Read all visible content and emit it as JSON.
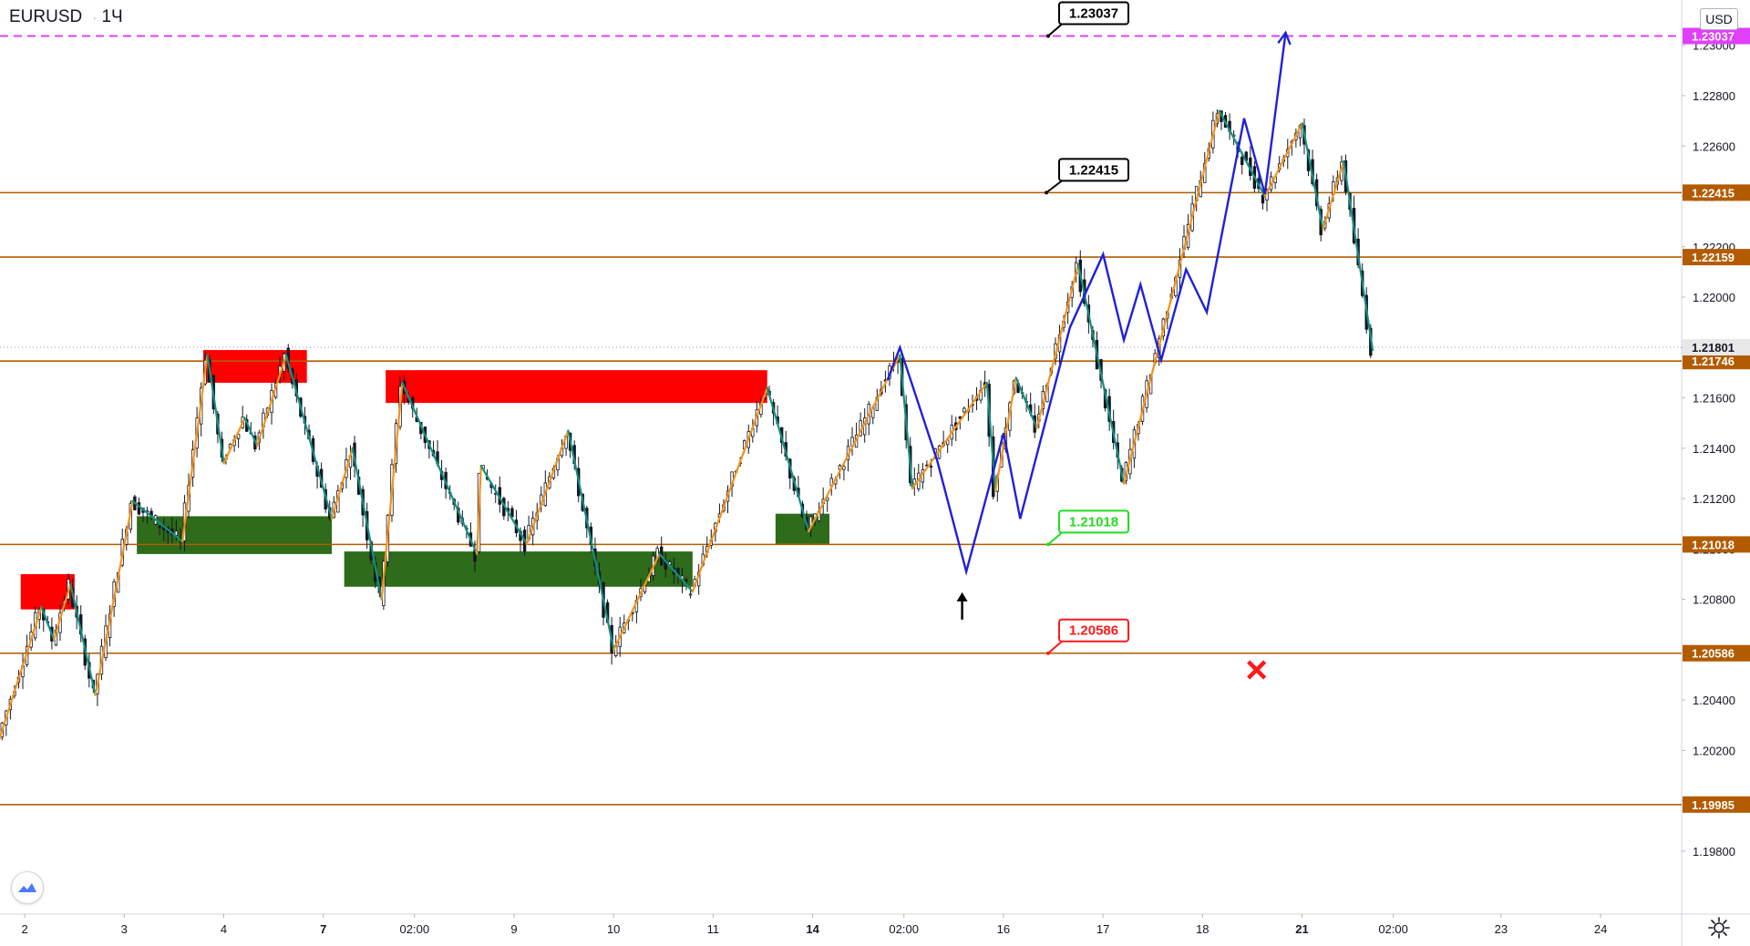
{
  "header": {
    "symbol": "EURUSD",
    "timeframe": "1Ч",
    "currency_button": "USD"
  },
  "colors": {
    "candle": "#131722",
    "level_line": "#b35b00",
    "zigzag_up": "#f5921b",
    "zigzag_down": "#138f80",
    "projection": "#2020d8",
    "dashed_target": "#e040fb",
    "supply_zone": "#ff0000",
    "demand_zone": "#2e6b1a",
    "target_green": "#22dd22",
    "target_red": "#ff1a1a",
    "last_price_label": "#e8e8e8"
  },
  "chart_data": {
    "type": "candlestick",
    "symbol": "EURUSD",
    "timeframe": "1Ч",
    "y_axis": {
      "ylim": [
        1.1955,
        1.2318
      ],
      "tick_labels": [
        "1.19800",
        "1.20000",
        "1.20200",
        "1.20400",
        "1.20600",
        "1.20800",
        "1.21000",
        "1.21200",
        "1.21400",
        "1.21600",
        "1.21800",
        "1.22000",
        "1.22200",
        "1.22400",
        "1.22600",
        "1.22800",
        "1.23000"
      ],
      "tick_values": [
        1.198,
        1.2,
        1.202,
        1.204,
        1.206,
        1.208,
        1.21,
        1.212,
        1.214,
        1.216,
        1.218,
        1.22,
        1.222,
        1.224,
        1.226,
        1.228,
        1.23
      ]
    },
    "x_axis": {
      "tick_labels": [
        "2",
        "3",
        "4",
        "7",
        "02:00",
        "9",
        "10",
        "11",
        "14",
        "02:00",
        "16",
        "17",
        "18",
        "21",
        "02:00",
        "23",
        "24"
      ],
      "tick_positions_hours": [
        2,
        26,
        50,
        74,
        96,
        120,
        144,
        168,
        192,
        214,
        238,
        262,
        286,
        310,
        332,
        358,
        382
      ]
    },
    "last_price": 1.21801,
    "levels": [
      {
        "value": 1.22415,
        "label": "1.22415"
      },
      {
        "value": 1.22159,
        "label": "1.22159"
      },
      {
        "value": 1.21746,
        "label": "1.21746"
      },
      {
        "value": 1.21018,
        "label": "1.21018"
      },
      {
        "value": 1.20586,
        "label": "1.20586"
      },
      {
        "value": 1.19985,
        "label": "1.19985"
      }
    ],
    "dashed_target_level": {
      "value": 1.23037,
      "label": "1.23037"
    },
    "callouts": [
      {
        "text": "1.23037",
        "value": 1.23037,
        "hour": 293,
        "style": "black"
      },
      {
        "text": "1.22415",
        "value": 1.22415,
        "hour": 293,
        "style": "black"
      },
      {
        "text": "1.21018",
        "value": 1.21018,
        "hour": 293,
        "style": "green"
      },
      {
        "text": "1.20586",
        "value": 1.20586,
        "hour": 293,
        "style": "red"
      }
    ],
    "supply_zones": [
      {
        "hour_start": 5,
        "hour_end": 18,
        "high": 1.209,
        "low": 1.2076
      },
      {
        "hour_start": 49,
        "hour_end": 74,
        "high": 1.2179,
        "low": 1.2166
      },
      {
        "hour_start": 93,
        "hour_end": 185,
        "high": 1.2171,
        "low": 1.2158
      }
    ],
    "demand_zones": [
      {
        "hour_start": 33,
        "hour_end": 80,
        "high": 1.2113,
        "low": 1.2098
      },
      {
        "hour_start": 83,
        "hour_end": 167,
        "high": 1.2099,
        "low": 1.2085
      },
      {
        "hour_start": 187,
        "hour_end": 200,
        "high": 1.2114,
        "low": 1.2102
      }
    ],
    "zigzag": [
      {
        "hour": -2,
        "price": 1.2015
      },
      {
        "hour": 10,
        "price": 1.2077
      },
      {
        "hour": 13,
        "price": 1.2064
      },
      {
        "hour": 17,
        "price": 1.2086
      },
      {
        "hour": 23,
        "price": 1.2042
      },
      {
        "hour": 32,
        "price": 1.2119
      },
      {
        "hour": 44,
        "price": 1.2103
      },
      {
        "hour": 50,
        "price": 1.2177
      },
      {
        "hour": 54,
        "price": 1.2134
      },
      {
        "hour": 59,
        "price": 1.2152
      },
      {
        "hour": 62,
        "price": 1.2141
      },
      {
        "hour": 69,
        "price": 1.2177
      },
      {
        "hour": 80,
        "price": 1.2112
      },
      {
        "hour": 85,
        "price": 1.214
      },
      {
        "hour": 92,
        "price": 1.208
      },
      {
        "hour": 97,
        "price": 1.2166
      },
      {
        "hour": 115,
        "price": 1.2098
      },
      {
        "hour": 116,
        "price": 1.2133
      },
      {
        "hour": 127,
        "price": 1.2102
      },
      {
        "hour": 137,
        "price": 1.2147
      },
      {
        "hour": 148,
        "price": 1.206
      },
      {
        "hour": 159,
        "price": 1.2098
      },
      {
        "hour": 167,
        "price": 1.2083
      },
      {
        "hour": 185,
        "price": 1.2164
      },
      {
        "hour": 195,
        "price": 1.2107
      },
      {
        "hour": 217,
        "price": 1.2177
      },
      {
        "hour": 220,
        "price": 1.2124
      },
      {
        "hour": 238,
        "price": 1.2166
      },
      {
        "hour": 240,
        "price": 1.2123
      },
      {
        "hour": 245,
        "price": 1.2168
      },
      {
        "hour": 250,
        "price": 1.2148
      },
      {
        "hour": 260,
        "price": 1.2213
      },
      {
        "hour": 271,
        "price": 1.2126
      },
      {
        "hour": 294,
        "price": 1.2274
      },
      {
        "hour": 305,
        "price": 1.224
      },
      {
        "hour": 314,
        "price": 1.2269
      },
      {
        "hour": 319,
        "price": 1.2227
      },
      {
        "hour": 324,
        "price": 1.2254
      },
      {
        "hour": 331,
        "price": 1.2179
      }
    ],
    "projection_path": [
      {
        "hour": 214,
        "price": 1.2167
      },
      {
        "hour": 217,
        "price": 1.218
      },
      {
        "hour": 226,
        "price": 1.2135
      },
      {
        "hour": 233,
        "price": 1.2091
      },
      {
        "hour": 242,
        "price": 1.2146
      },
      {
        "hour": 246,
        "price": 1.2112
      },
      {
        "hour": 258,
        "price": 1.2188
      },
      {
        "hour": 266,
        "price": 1.2217
      },
      {
        "hour": 271,
        "price": 1.2183
      },
      {
        "hour": 275,
        "price": 1.2205
      },
      {
        "hour": 280,
        "price": 1.2175
      },
      {
        "hour": 286,
        "price": 1.2211
      },
      {
        "hour": 291,
        "price": 1.2194
      },
      {
        "hour": 300,
        "price": 1.2271
      },
      {
        "hour": 305,
        "price": 1.2241
      },
      {
        "hour": 310,
        "price": 1.2305
      }
    ],
    "markers": [
      {
        "type": "arrow-up",
        "hour": 232,
        "price": 1.2077
      },
      {
        "type": "cross",
        "hour": 303,
        "price": 1.2052
      }
    ]
  }
}
